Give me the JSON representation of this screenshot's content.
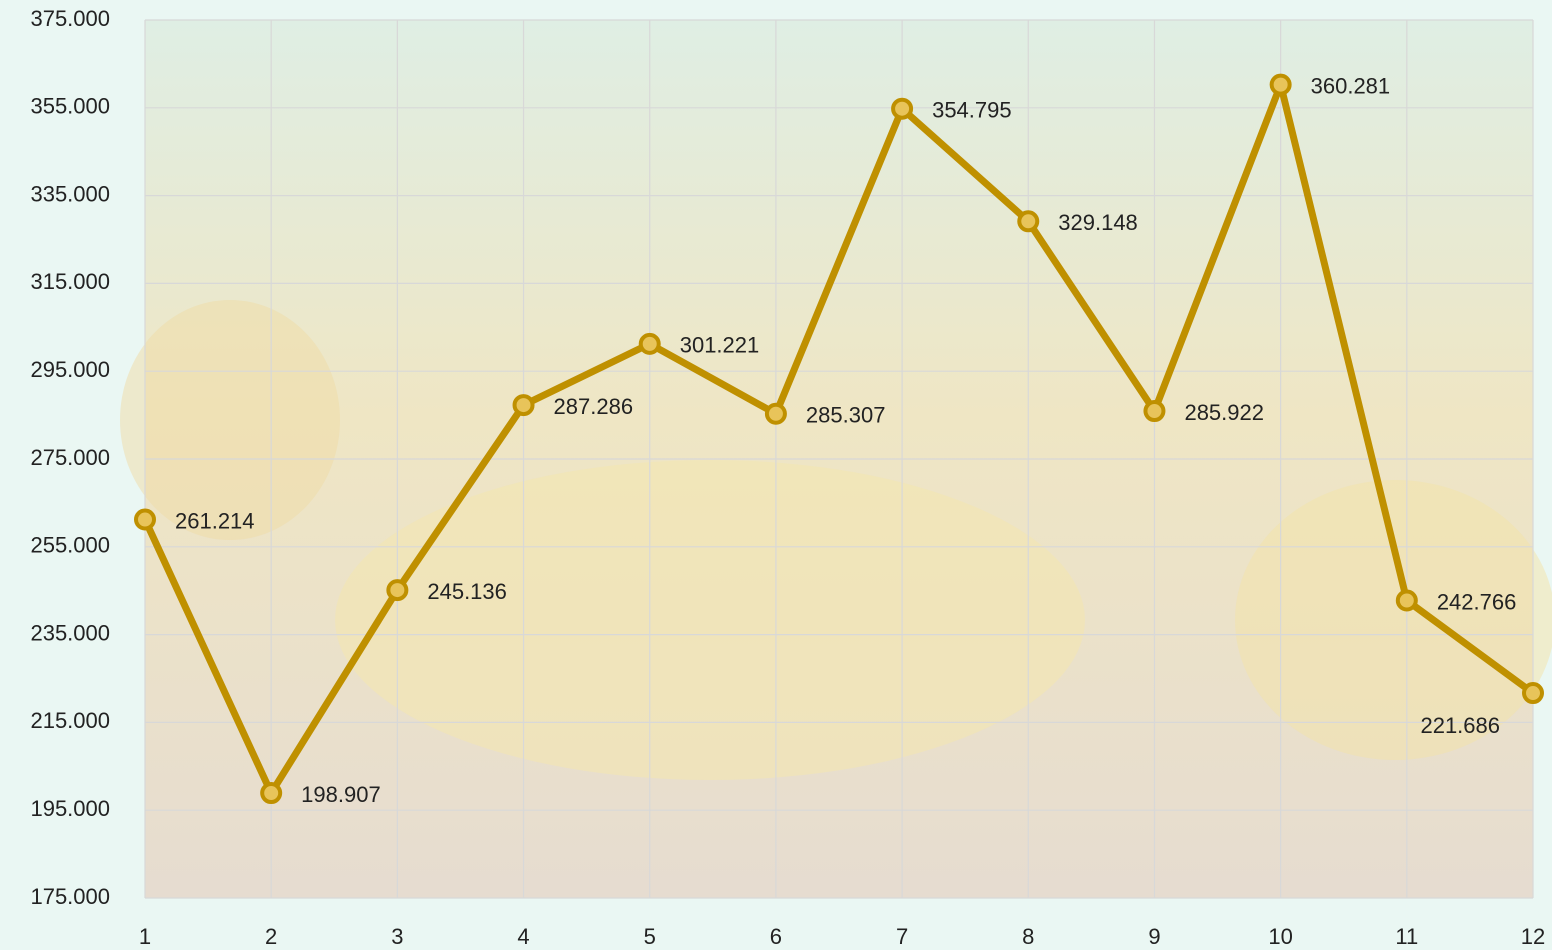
{
  "chart_data": {
    "type": "line",
    "x": [
      1,
      2,
      3,
      4,
      5,
      6,
      7,
      8,
      9,
      10,
      11,
      12
    ],
    "xlim": [
      1,
      12
    ],
    "xticks": [
      1,
      2,
      3,
      4,
      5,
      6,
      7,
      8,
      9,
      10,
      11,
      12
    ],
    "ylim": [
      175000,
      375000
    ],
    "yticks": [
      {
        "value": 175000,
        "label": "175.000"
      },
      {
        "value": 195000,
        "label": "195.000"
      },
      {
        "value": 215000,
        "label": "215.000"
      },
      {
        "value": 235000,
        "label": "235.000"
      },
      {
        "value": 255000,
        "label": "255.000"
      },
      {
        "value": 275000,
        "label": "275.000"
      },
      {
        "value": 295000,
        "label": "295.000"
      },
      {
        "value": 315000,
        "label": "315.000"
      },
      {
        "value": 335000,
        "label": "335.000"
      },
      {
        "value": 355000,
        "label": "355.000"
      },
      {
        "value": 375000,
        "label": "375.000"
      }
    ],
    "grid": true,
    "color": "#bf9000",
    "values": [
      261214,
      198907,
      245136,
      287286,
      301221,
      285307,
      354795,
      329148,
      285922,
      360281,
      242766,
      221686
    ],
    "value_labels": [
      "261.214",
      "198.907",
      "245.136",
      "287.286",
      "301.221",
      "285.307",
      "354.795",
      "329.148",
      "285.922",
      "360.281",
      "242.766",
      "221.686"
    ]
  }
}
